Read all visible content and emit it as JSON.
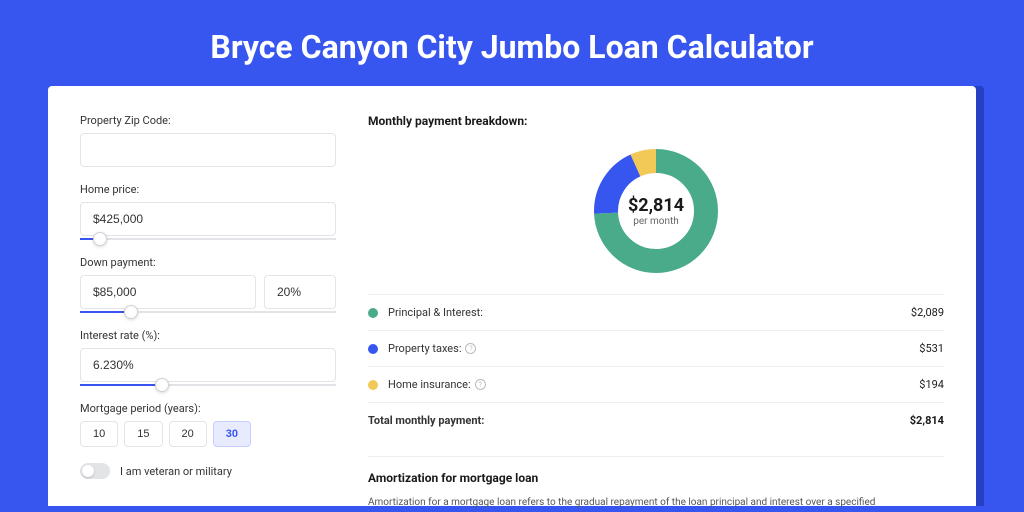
{
  "title": "Bryce Canyon City Jumbo Loan Calculator",
  "colors": {
    "page_bg": "#3756f0",
    "card_shadow": "#2640c4",
    "accent": "#3756f0",
    "donut_green": "#4aab8a",
    "donut_blue": "#3756f0",
    "donut_yellow": "#f2c957",
    "border": "#e2e4e8"
  },
  "form": {
    "zip": {
      "label": "Property Zip Code:",
      "value": ""
    },
    "home_price": {
      "label": "Home price:",
      "value": "$425,000",
      "slider_pct": 8
    },
    "down_payment": {
      "label": "Down payment:",
      "amount": "$85,000",
      "pct": "20%",
      "slider_pct": 20
    },
    "interest_rate": {
      "label": "Interest rate (%):",
      "value": "6.230%",
      "slider_pct": 32
    },
    "mortgage_period": {
      "label": "Mortgage period (years):",
      "options": [
        "10",
        "15",
        "20",
        "30"
      ],
      "selected_index": 3
    },
    "veteran": {
      "label": "I am veteran or military",
      "on": false
    }
  },
  "breakdown": {
    "heading": "Monthly payment breakdown:",
    "donut": {
      "amount": "$2,814",
      "sub": "per month",
      "segments": [
        {
          "key": "principal",
          "color": "#4aab8a",
          "fraction": 0.742
        },
        {
          "key": "taxes",
          "color": "#3756f0",
          "fraction": 0.189
        },
        {
          "key": "insurance",
          "color": "#f2c957",
          "fraction": 0.069
        }
      ],
      "radius": 50,
      "stroke_width": 24
    },
    "rows": [
      {
        "color": "#4aab8a",
        "label": "Principal & Interest:",
        "value": "$2,089",
        "info": false
      },
      {
        "color": "#3756f0",
        "label": "Property taxes:",
        "value": "$531",
        "info": true
      },
      {
        "color": "#f2c957",
        "label": "Home insurance:",
        "value": "$194",
        "info": true
      }
    ],
    "total": {
      "label": "Total monthly payment:",
      "value": "$2,814"
    }
  },
  "amortization": {
    "heading": "Amortization for mortgage loan",
    "text": "Amortization for a mortgage loan refers to the gradual repayment of the loan principal and interest over a specified"
  }
}
